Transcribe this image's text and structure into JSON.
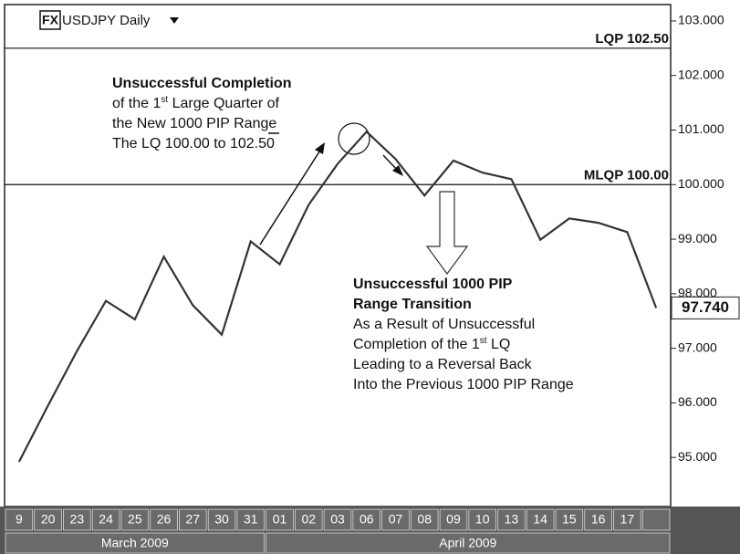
{
  "chart_data": {
    "type": "line",
    "title": "USDJPY Daily",
    "badge": "FX",
    "categories": [
      "9",
      "20",
      "23",
      "24",
      "25",
      "26",
      "27",
      "30",
      "31",
      "01",
      "02",
      "03",
      "06",
      "07",
      "08",
      "09",
      "10",
      "13",
      "14",
      "15",
      "16",
      "17",
      null
    ],
    "months": [
      {
        "label": "March 2009",
        "span": 9
      },
      {
        "label": "April 2009",
        "span": 14
      }
    ],
    "series": [
      {
        "name": "USDJPY",
        "color": "#333333",
        "values": [
          94.92,
          95.95,
          96.95,
          97.87,
          97.53,
          98.68,
          97.79,
          97.25,
          98.96,
          98.54,
          99.63,
          100.38,
          100.97,
          100.47,
          99.8,
          100.44,
          100.22,
          100.1,
          98.99,
          99.38,
          99.3,
          99.13,
          97.74
        ],
        "value_labels": [
          null,
          null,
          null,
          null,
          null,
          null,
          null,
          null,
          null,
          null,
          null,
          null,
          null,
          null,
          null,
          null,
          null,
          null,
          null,
          null,
          null,
          null,
          "97.740"
        ]
      }
    ],
    "ylim": [
      94.1,
      103.3
    ],
    "yticks": [
      {
        "value": 95,
        "label": "95.000"
      },
      {
        "value": 96,
        "label": "96.000"
      },
      {
        "value": 97,
        "label": "97.000"
      },
      {
        "value": 98,
        "label": "98.000"
      },
      {
        "value": 99,
        "label": "99.000"
      },
      {
        "value": 100,
        "label": "100.000"
      },
      {
        "value": 101,
        "label": "101.000"
      },
      {
        "value": 102,
        "label": "102.000"
      },
      {
        "value": 103,
        "label": "103.000"
      }
    ],
    "levels": [
      {
        "label": "LQP 102.50",
        "value": 102.5
      },
      {
        "label": "MLQP 100.00",
        "value": 100
      }
    ],
    "annotations": [
      {
        "lines": [
          {
            "parts": [
              "Unsuccessful Completion"
            ],
            "bold": true
          },
          {
            "parts": [
              "of the 1",
              "st",
              " Large Quarter of"
            ]
          },
          {
            "parts": [
              "the New 1000 PIP Range"
            ]
          },
          {
            "parts": [
              "The LQ 100.00 to 102.50"
            ]
          }
        ]
      },
      {
        "lines": [
          {
            "parts": [
              "Unsuccessful 1000 PIP"
            ],
            "bold": true
          },
          {
            "parts": [
              "Range Transition"
            ],
            "bold": true
          },
          {
            "parts": [
              "As a Result of Unsuccessful"
            ]
          },
          {
            "parts": [
              "Completion of the 1",
              "st",
              " LQ"
            ]
          },
          {
            "parts": [
              "Leading to a Reversal Back"
            ]
          },
          {
            "parts": [
              "Into the Previous 1000 PIP Range"
            ]
          }
        ]
      }
    ]
  }
}
